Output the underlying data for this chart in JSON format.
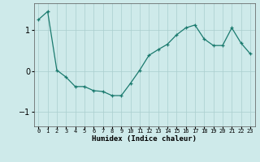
{
  "x": [
    0,
    1,
    2,
    3,
    4,
    5,
    6,
    7,
    8,
    9,
    10,
    11,
    12,
    13,
    14,
    15,
    16,
    17,
    18,
    19,
    20,
    21,
    22,
    23
  ],
  "y": [
    1.25,
    1.45,
    0.02,
    -0.15,
    -0.38,
    -0.38,
    -0.48,
    -0.5,
    -0.6,
    -0.6,
    -0.3,
    0.02,
    0.38,
    0.52,
    0.65,
    0.88,
    1.05,
    1.12,
    0.78,
    0.62,
    0.62,
    1.05,
    0.68,
    0.42
  ],
  "xlabel": "Humidex (Indice chaleur)",
  "ylim": [
    -1.35,
    1.65
  ],
  "xlim": [
    -0.5,
    23.5
  ],
  "yticks": [
    -1,
    0,
    1
  ],
  "xtick_labels": [
    "0",
    "1",
    "2",
    "3",
    "4",
    "5",
    "6",
    "7",
    "8",
    "9",
    "10",
    "11",
    "12",
    "13",
    "14",
    "15",
    "16",
    "17",
    "18",
    "19",
    "20",
    "21",
    "22",
    "23"
  ],
  "line_color": "#1a7a6e",
  "marker": "+",
  "bg_color": "#ceeaea",
  "grid_color": "#aacece",
  "fig_bg": "#ceeaea"
}
